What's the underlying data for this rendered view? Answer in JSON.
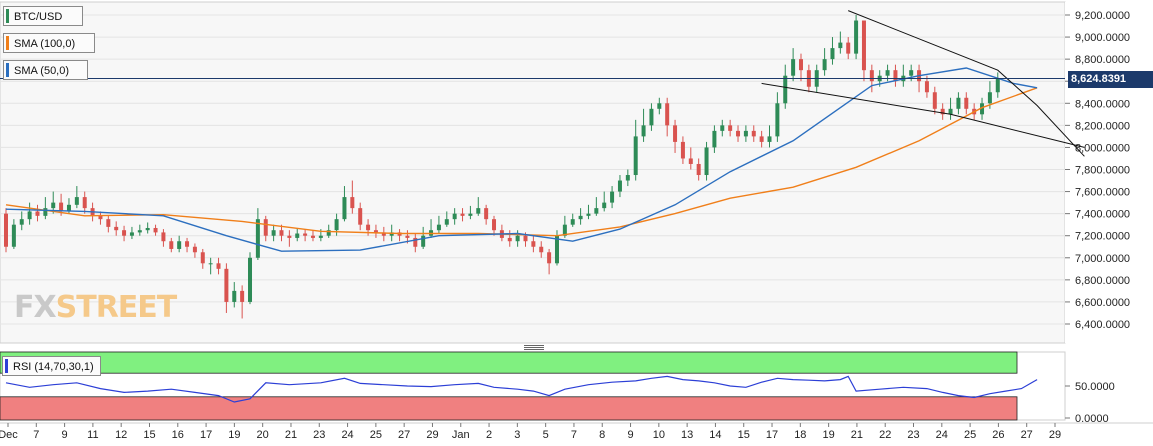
{
  "legends": {
    "main_symbol": "BTC/USD",
    "sma100": "SMA (100,0)",
    "sma50": "SMA (50,0)",
    "rsi": "RSI (14,70,30,1)"
  },
  "colors": {
    "up": "#2e8b57",
    "down": "#d9534f",
    "sma100": "#f07f1a",
    "sma50": "#2c6fbf",
    "rsi_line": "#2c3fd6",
    "rsi_high_zone": "#80f080",
    "rsi_low_zone": "#f08080",
    "trendline": "#111111",
    "price_line": "#1c3a6b",
    "price_tag_bg": "#1c3a6b"
  },
  "logo": {
    "part1": "FX",
    "part2": "STREET"
  },
  "current_price_label": "8,624.8391",
  "chart_data": {
    "type": "candlestick",
    "price_axis": {
      "min": 6300,
      "max": 9300,
      "ticks": [
        "9,200.0000",
        "9,000.0000",
        "8,800.0000",
        "8,600.0000",
        "8,400.0000",
        "8,200.0000",
        "8,000.0000",
        "7,800.0000",
        "7,600.0000",
        "7,400.0000",
        "7,200.0000",
        "7,000.0000",
        "6,800.0000",
        "6,600.0000",
        "6,400.0000"
      ],
      "tick_values": [
        9200,
        9000,
        8800,
        8600,
        8400,
        8200,
        8000,
        7800,
        7600,
        7400,
        7200,
        7000,
        6800,
        6600,
        6400
      ]
    },
    "rsi_axis": {
      "ticks": [
        "50.0000",
        "0.0000"
      ],
      "tick_values": [
        50,
        0
      ],
      "overbought": 70,
      "oversold": 30,
      "range": [
        -3,
        100
      ]
    },
    "x_labels": [
      "Dec",
      "7",
      "9",
      "11",
      "12",
      "15",
      "16",
      "17",
      "19",
      "20",
      "21",
      "23",
      "24",
      "25",
      "27",
      "29",
      "Jan",
      "2",
      "3",
      "5",
      "7",
      "8",
      "9",
      "10",
      "13",
      "14",
      "15",
      "17",
      "18",
      "19",
      "21",
      "22",
      "23",
      "24",
      "25",
      "26",
      "27",
      "29"
    ],
    "sessions_total": 132,
    "candles": [
      [
        7400,
        7100,
        7450,
        7050
      ],
      [
        7100,
        7300,
        7350,
        7080
      ],
      [
        7300,
        7350,
        7420,
        7250
      ],
      [
        7350,
        7420,
        7500,
        7300
      ],
      [
        7420,
        7380,
        7480,
        7330
      ],
      [
        7380,
        7450,
        7550,
        7350
      ],
      [
        7450,
        7500,
        7600,
        7400
      ],
      [
        7500,
        7420,
        7580,
        7380
      ],
      [
        7420,
        7480,
        7540,
        7400
      ],
      [
        7480,
        7550,
        7650,
        7450
      ],
      [
        7550,
        7450,
        7600,
        7400
      ],
      [
        7450,
        7380,
        7500,
        7330
      ],
      [
        7380,
        7350,
        7420,
        7300
      ],
      [
        7350,
        7280,
        7380,
        7230
      ],
      [
        7280,
        7250,
        7330,
        7200
      ],
      [
        7250,
        7200,
        7290,
        7150
      ],
      [
        7200,
        7230,
        7280,
        7170
      ],
      [
        7230,
        7250,
        7300,
        7200
      ],
      [
        7250,
        7270,
        7320,
        7220
      ],
      [
        7270,
        7230,
        7300,
        7200
      ],
      [
        7230,
        7150,
        7260,
        7100
      ],
      [
        7150,
        7080,
        7180,
        7050
      ],
      [
        7080,
        7150,
        7200,
        7050
      ],
      [
        7150,
        7100,
        7180,
        7050
      ],
      [
        7100,
        7050,
        7130,
        7000
      ],
      [
        7050,
        6950,
        7080,
        6900
      ],
      [
        6950,
        6950,
        7000,
        6850
      ],
      [
        6950,
        6900,
        7000,
        6850
      ],
      [
        6900,
        6600,
        6950,
        6500
      ],
      [
        6600,
        6700,
        6780,
        6550
      ],
      [
        6700,
        6600,
        6750,
        6450
      ],
      [
        6600,
        7000,
        7050,
        6580
      ],
      [
        7000,
        7350,
        7450,
        6980
      ],
      [
        7350,
        7200,
        7380,
        7150
      ],
      [
        7200,
        7250,
        7300,
        7150
      ],
      [
        7250,
        7200,
        7300,
        7150
      ],
      [
        7200,
        7180,
        7250,
        7100
      ],
      [
        7180,
        7220,
        7270,
        7150
      ],
      [
        7220,
        7200,
        7260,
        7150
      ],
      [
        7200,
        7180,
        7250,
        7150
      ],
      [
        7180,
        7200,
        7260,
        7150
      ],
      [
        7200,
        7250,
        7300,
        7180
      ],
      [
        7250,
        7350,
        7400,
        7200
      ],
      [
        7350,
        7550,
        7650,
        7330
      ],
      [
        7550,
        7450,
        7700,
        7400
      ],
      [
        7450,
        7300,
        7500,
        7250
      ],
      [
        7300,
        7250,
        7350,
        7200
      ],
      [
        7250,
        7230,
        7300,
        7180
      ],
      [
        7230,
        7200,
        7280,
        7150
      ],
      [
        7200,
        7230,
        7300,
        7150
      ],
      [
        7230,
        7200,
        7260,
        7150
      ],
      [
        7200,
        7180,
        7250,
        7130
      ],
      [
        7180,
        7100,
        7220,
        7050
      ],
      [
        7100,
        7200,
        7280,
        7080
      ],
      [
        7200,
        7250,
        7350,
        7180
      ],
      [
        7250,
        7300,
        7380,
        7220
      ],
      [
        7300,
        7350,
        7420,
        7280
      ],
      [
        7350,
        7400,
        7450,
        7300
      ],
      [
        7400,
        7380,
        7450,
        7330
      ],
      [
        7380,
        7400,
        7470,
        7350
      ],
      [
        7400,
        7450,
        7550,
        7380
      ],
      [
        7450,
        7350,
        7480,
        7300
      ],
      [
        7350,
        7250,
        7380,
        7200
      ],
      [
        7250,
        7180,
        7300,
        7150
      ],
      [
        7180,
        7150,
        7250,
        7100
      ],
      [
        7150,
        7200,
        7250,
        7100
      ],
      [
        7200,
        7150,
        7230,
        7100
      ],
      [
        7150,
        7100,
        7200,
        7050
      ],
      [
        7100,
        7050,
        7150,
        7000
      ],
      [
        7050,
        6950,
        7080,
        6850
      ],
      [
        6950,
        7200,
        7250,
        6930
      ],
      [
        7200,
        7300,
        7380,
        7180
      ],
      [
        7300,
        7350,
        7400,
        7280
      ],
      [
        7350,
        7380,
        7450,
        7300
      ],
      [
        7380,
        7400,
        7480,
        7350
      ],
      [
        7400,
        7450,
        7550,
        7380
      ],
      [
        7450,
        7500,
        7600,
        7420
      ],
      [
        7500,
        7600,
        7650,
        7450
      ],
      [
        7600,
        7700,
        7750,
        7550
      ],
      [
        7700,
        7750,
        7800,
        7650
      ],
      [
        7750,
        8100,
        8250,
        7700
      ],
      [
        8100,
        8200,
        8350,
        8050
      ],
      [
        8200,
        8350,
        8400,
        8150
      ],
      [
        8350,
        8400,
        8450,
        8300
      ],
      [
        8400,
        8200,
        8450,
        8100
      ],
      [
        8200,
        8050,
        8250,
        7950
      ],
      [
        8050,
        7900,
        8100,
        7850
      ],
      [
        7900,
        7850,
        8000,
        7800
      ],
      [
        7850,
        7750,
        7900,
        7700
      ],
      [
        7750,
        8000,
        8050,
        7700
      ],
      [
        8000,
        8150,
        8200,
        7950
      ],
      [
        8150,
        8200,
        8250,
        8100
      ],
      [
        8200,
        8150,
        8250,
        8100
      ],
      [
        8150,
        8100,
        8200,
        8050
      ],
      [
        8100,
        8150,
        8200,
        8050
      ],
      [
        8150,
        8100,
        8200,
        8050
      ],
      [
        8100,
        8050,
        8150,
        8000
      ],
      [
        8050,
        8100,
        8200,
        8000
      ],
      [
        8100,
        8400,
        8500,
        8050
      ],
      [
        8400,
        8650,
        8750,
        8350
      ],
      [
        8650,
        8800,
        8900,
        8600
      ],
      [
        8800,
        8700,
        8850,
        8600
      ],
      [
        8700,
        8550,
        8750,
        8500
      ],
      [
        8550,
        8700,
        8750,
        8500
      ],
      [
        8700,
        8800,
        8900,
        8650
      ],
      [
        8800,
        8900,
        9000,
        8750
      ],
      [
        8900,
        8950,
        9050,
        8850
      ],
      [
        8950,
        8850,
        9000,
        8800
      ],
      [
        8850,
        9150,
        9200,
        8800
      ],
      [
        9150,
        8700,
        9150,
        8600
      ],
      [
        8700,
        8600,
        8750,
        8500
      ],
      [
        8600,
        8650,
        8700,
        8550
      ],
      [
        8650,
        8700,
        8750,
        8600
      ],
      [
        8700,
        8600,
        8750,
        8550
      ],
      [
        8600,
        8650,
        8750,
        8550
      ],
      [
        8650,
        8700,
        8750,
        8600
      ],
      [
        8700,
        8600,
        8750,
        8500
      ],
      [
        8600,
        8500,
        8650,
        8450
      ],
      [
        8500,
        8350,
        8550,
        8300
      ],
      [
        8350,
        8300,
        8400,
        8250
      ],
      [
        8300,
        8350,
        8450,
        8250
      ],
      [
        8350,
        8450,
        8500,
        8300
      ],
      [
        8450,
        8350,
        8500,
        8300
      ],
      [
        8350,
        8300,
        8400,
        8250
      ],
      [
        8300,
        8400,
        8450,
        8250
      ],
      [
        8400,
        8500,
        8600,
        8350
      ],
      [
        8500,
        8624,
        8680,
        8450
      ]
    ],
    "sma100": [
      [
        0,
        7480
      ],
      [
        10,
        7380
      ],
      [
        20,
        7390
      ],
      [
        30,
        7330
      ],
      [
        40,
        7240
      ],
      [
        50,
        7220
      ],
      [
        60,
        7220
      ],
      [
        70,
        7200
      ],
      [
        78,
        7280
      ],
      [
        85,
        7400
      ],
      [
        92,
        7540
      ],
      [
        100,
        7640
      ],
      [
        108,
        7820
      ],
      [
        116,
        8060
      ],
      [
        124,
        8360
      ],
      [
        131,
        8540
      ]
    ],
    "sma50": [
      [
        0,
        7440
      ],
      [
        10,
        7420
      ],
      [
        20,
        7380
      ],
      [
        28,
        7200
      ],
      [
        35,
        7060
      ],
      [
        45,
        7070
      ],
      [
        55,
        7200
      ],
      [
        65,
        7220
      ],
      [
        72,
        7150
      ],
      [
        78,
        7260
      ],
      [
        85,
        7480
      ],
      [
        92,
        7780
      ],
      [
        100,
        8060
      ],
      [
        106,
        8360
      ],
      [
        110,
        8560
      ],
      [
        116,
        8650
      ],
      [
        122,
        8720
      ],
      [
        128,
        8580
      ],
      [
        131,
        8540
      ]
    ],
    "trendlines": [
      [
        [
          107,
          9240
        ],
        [
          126,
          8700
        ],
        [
          131,
          8380
        ],
        [
          137,
          7920
        ]
      ],
      [
        [
          96,
          8580
        ],
        [
          120,
          8300
        ],
        [
          137,
          8000
        ]
      ]
    ],
    "rsi": [
      [
        0,
        55
      ],
      [
        3,
        48
      ],
      [
        6,
        52
      ],
      [
        9,
        55
      ],
      [
        12,
        46
      ],
      [
        15,
        40
      ],
      [
        18,
        42
      ],
      [
        21,
        45
      ],
      [
        24,
        40
      ],
      [
        27,
        35
      ],
      [
        29,
        25
      ],
      [
        31,
        30
      ],
      [
        33,
        55
      ],
      [
        36,
        52
      ],
      [
        40,
        55
      ],
      [
        43,
        62
      ],
      [
        45,
        54
      ],
      [
        48,
        52
      ],
      [
        51,
        50
      ],
      [
        54,
        49
      ],
      [
        57,
        52
      ],
      [
        60,
        54
      ],
      [
        62,
        48
      ],
      [
        65,
        45
      ],
      [
        67,
        42
      ],
      [
        69,
        35
      ],
      [
        71,
        45
      ],
      [
        74,
        52
      ],
      [
        77,
        56
      ],
      [
        80,
        58
      ],
      [
        82,
        62
      ],
      [
        84,
        65
      ],
      [
        86,
        60
      ],
      [
        88,
        58
      ],
      [
        90,
        55
      ],
      [
        92,
        50
      ],
      [
        94,
        48
      ],
      [
        96,
        56
      ],
      [
        98,
        62
      ],
      [
        100,
        60
      ],
      [
        102,
        59
      ],
      [
        104,
        58
      ],
      [
        106,
        60
      ],
      [
        107,
        65
      ],
      [
        108,
        42
      ],
      [
        111,
        45
      ],
      [
        114,
        48
      ],
      [
        117,
        46
      ],
      [
        119,
        40
      ],
      [
        121,
        35
      ],
      [
        123,
        32
      ],
      [
        125,
        38
      ],
      [
        127,
        42
      ],
      [
        129,
        46
      ],
      [
        131,
        60
      ]
    ]
  }
}
